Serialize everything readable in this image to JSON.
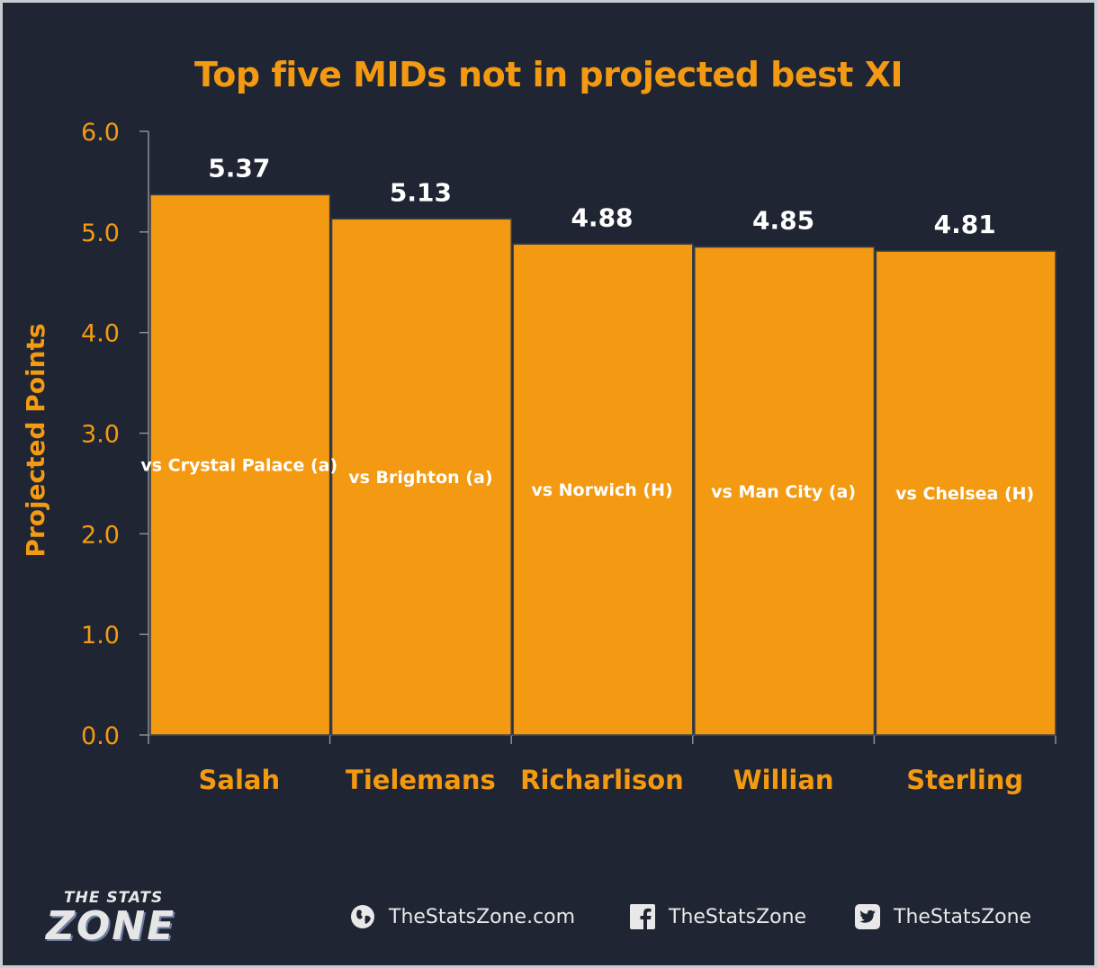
{
  "chart_data": {
    "type": "bar",
    "title": "Top five MIDs not in projected best XI",
    "xlabel": "",
    "ylabel": "Projected Points",
    "categories": [
      "Salah",
      "Tielemans",
      "Richarlison",
      "Willian",
      "Sterling"
    ],
    "values": [
      5.37,
      5.13,
      4.88,
      4.85,
      4.81
    ],
    "value_labels": [
      "5.37",
      "5.13",
      "4.88",
      "4.85",
      "4.81"
    ],
    "bar_notes": [
      "vs Crystal Palace (a)",
      "vs Brighton (a)",
      "vs Norwich (H)",
      "vs Man City (a)",
      "vs Chelsea (H)"
    ],
    "ylim": [
      0,
      6
    ],
    "yticks": [
      "0.0",
      "1.0",
      "2.0",
      "3.0",
      "4.0",
      "5.0",
      "6.0"
    ],
    "grid": false,
    "bar_color": "#f39a12",
    "background": "#1f2532"
  },
  "footer": {
    "logo_top": "THE STATS",
    "logo_main": "ZONE",
    "website": "TheStatsZone.com",
    "facebook": "TheStatsZone",
    "twitter": "TheStatsZone",
    "website_icon": "globe-icon",
    "facebook_icon": "facebook-icon",
    "twitter_icon": "twitter-icon"
  }
}
